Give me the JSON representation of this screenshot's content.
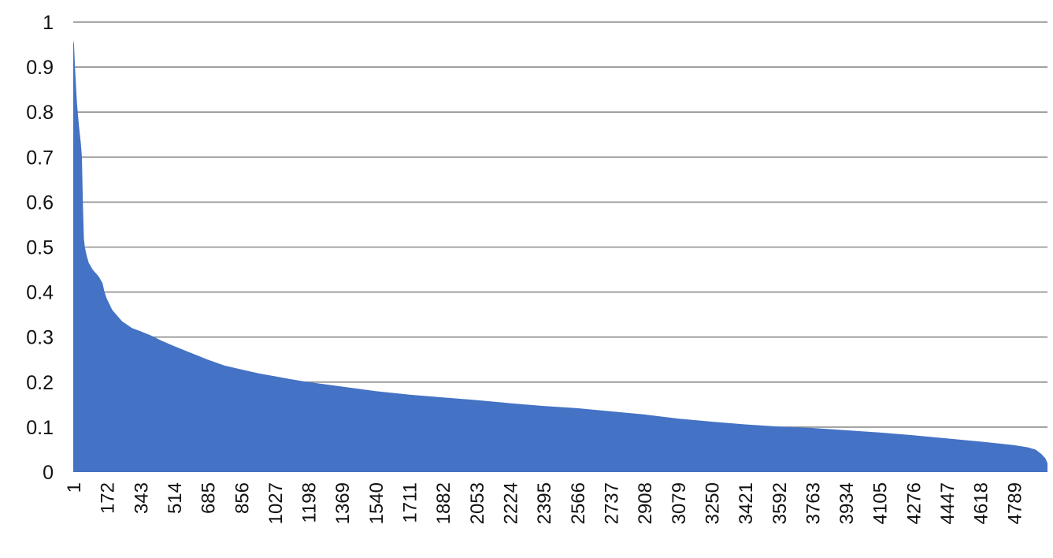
{
  "chart_data": {
    "type": "area",
    "title": "",
    "xlabel": "",
    "ylabel": "",
    "ylim": [
      0,
      1
    ],
    "xlim": [
      1,
      4960
    ],
    "grid": true,
    "fill_color": "#4472c4",
    "grid_color": "#8c8c8c",
    "y_ticks": [
      "0",
      "0.1",
      "0.2",
      "0.3",
      "0.4",
      "0.5",
      "0.6",
      "0.7",
      "0.8",
      "0.9",
      "1"
    ],
    "x_ticks": [
      "1",
      "172",
      "343",
      "514",
      "685",
      "856",
      "1027",
      "1198",
      "1369",
      "1540",
      "1711",
      "1882",
      "2053",
      "2224",
      "2395",
      "2566",
      "2737",
      "2908",
      "3079",
      "3250",
      "3421",
      "3592",
      "3763",
      "3934",
      "4105",
      "4276",
      "4447",
      "4618",
      "4789"
    ],
    "series": [
      {
        "x": [
          1,
          5,
          10,
          20,
          30,
          40,
          45,
          50,
          55,
          60,
          70,
          80,
          100,
          130,
          150,
          160,
          172,
          200,
          250,
          300,
          343,
          400,
          450,
          514,
          600,
          685,
          770,
          856,
          950,
          1027,
          1100,
          1198,
          1369,
          1540,
          1711,
          1882,
          2053,
          2224,
          2395,
          2566,
          2737,
          2908,
          3079,
          3250,
          3421,
          3592,
          3763,
          3934,
          4105,
          4276,
          4447,
          4618,
          4789,
          4860,
          4900,
          4930,
          4950,
          4960
        ],
        "y": [
          0.96,
          0.95,
          0.9,
          0.82,
          0.77,
          0.73,
          0.7,
          0.6,
          0.52,
          0.5,
          0.48,
          0.465,
          0.45,
          0.435,
          0.42,
          0.4,
          0.385,
          0.36,
          0.335,
          0.32,
          0.313,
          0.303,
          0.292,
          0.28,
          0.265,
          0.25,
          0.237,
          0.228,
          0.219,
          0.213,
          0.207,
          0.2,
          0.19,
          0.18,
          0.172,
          0.166,
          0.16,
          0.153,
          0.147,
          0.142,
          0.135,
          0.128,
          0.119,
          0.112,
          0.106,
          0.101,
          0.098,
          0.093,
          0.088,
          0.082,
          0.075,
          0.068,
          0.06,
          0.055,
          0.05,
          0.04,
          0.03,
          0.02
        ]
      }
    ]
  }
}
